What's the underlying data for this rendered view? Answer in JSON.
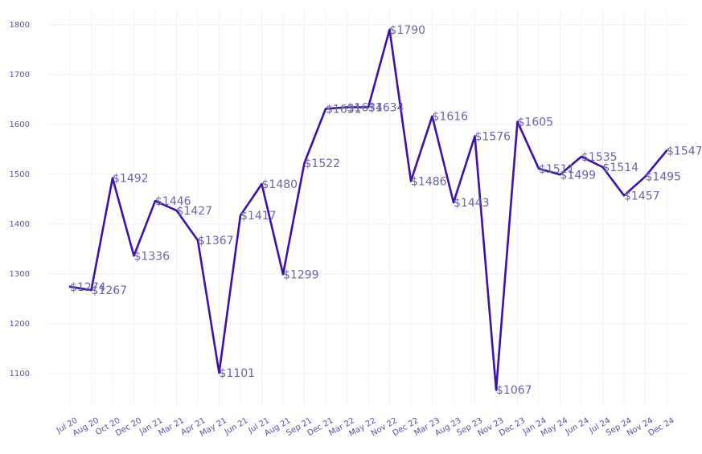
{
  "chart_data": {
    "type": "line",
    "title": "",
    "xlabel": "",
    "ylabel": "",
    "ylim": [
      1035,
      1830
    ],
    "yticks": [
      1100,
      1200,
      1300,
      1400,
      1500,
      1600,
      1700,
      1800
    ],
    "grid": true,
    "line_color": "#3d10a8",
    "label_color": "#6b63a8",
    "tick_color": "#5a4fa3",
    "categories": [
      "Jul 20",
      "Aug 20",
      "Oct 20",
      "Dec 20",
      "Jan 21",
      "Mar 21",
      "Apr 21",
      "May 21",
      "Jun 21",
      "Jul 21",
      "Aug 21",
      "Sep 21",
      "Dec 21",
      "Mar 22",
      "May 22",
      "Nov 22",
      "Dec 22",
      "Mar 23",
      "Aug 23",
      "Sep 23",
      "Nov 23",
      "Dec 23",
      "Jan 24",
      "May 24",
      "Jun 24",
      "Jul 24",
      "Sep 24",
      "Nov 24",
      "Dec 24"
    ],
    "values": [
      1274,
      1267,
      1492,
      1336,
      1446,
      1427,
      1367,
      1101,
      1417,
      1480,
      1299,
      1522,
      1631,
      1634,
      1634,
      1790,
      1486,
      1616,
      1443,
      1576,
      1067,
      1605,
      1511,
      1499,
      1535,
      1514,
      1457,
      1495,
      1547
    ],
    "labels": [
      "$1274",
      "$1267",
      "$1492",
      "$1336",
      "$1446",
      "$1427",
      "$1367",
      "$1101",
      "$1417",
      "$1480",
      "$1299",
      "$1522",
      "$1631",
      "$1634",
      "$1634",
      "$1790",
      "$1486",
      "$1616",
      "$1443",
      "$1576",
      "$1067",
      "$1605",
      "$1511",
      "$1499",
      "$1535",
      "$1514",
      "$1457",
      "$1495",
      "$1547"
    ]
  }
}
